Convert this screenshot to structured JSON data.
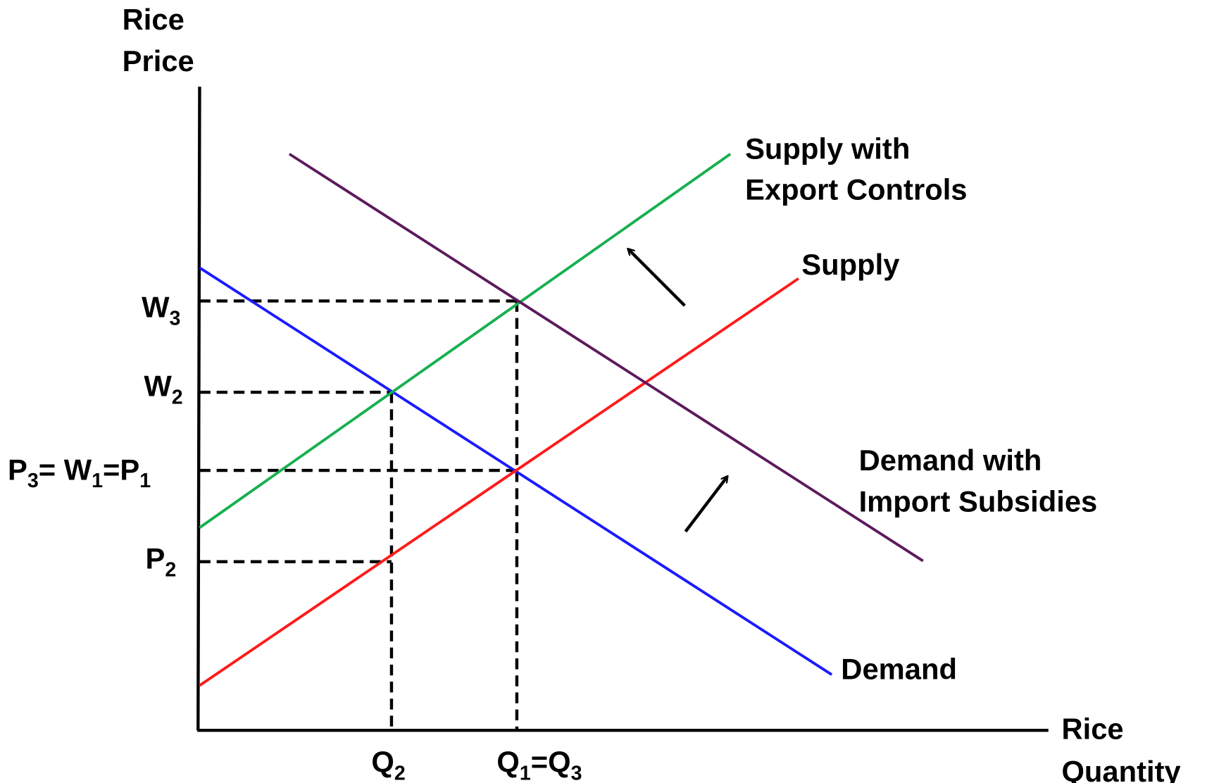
{
  "y_axis_label": [
    "Rice",
    "Price"
  ],
  "x_axis_label": [
    "Rice",
    "Quantity"
  ],
  "curves": [
    {
      "lines": [
        "Supply with",
        "Export Controls"
      ]
    },
    {
      "lines": [
        "Supply"
      ]
    },
    {
      "lines": [
        "Demand with",
        "Import Subsidies"
      ]
    },
    {
      "lines": [
        "Demand"
      ]
    }
  ],
  "price_labels": [
    {
      "parts": [
        {
          "text": "W"
        },
        {
          "text": "3",
          "sub": true
        }
      ]
    },
    {
      "parts": [
        {
          "text": "W"
        },
        {
          "text": "2",
          "sub": true
        }
      ]
    },
    {
      "parts": [
        {
          "text": "P"
        },
        {
          "text": "3",
          "sub": true
        },
        {
          "text": "= W"
        },
        {
          "text": "1",
          "sub": true
        },
        {
          "text": "=P"
        },
        {
          "text": "1",
          "sub": true
        }
      ]
    },
    {
      "parts": [
        {
          "text": "P"
        },
        {
          "text": "2",
          "sub": true
        }
      ]
    }
  ],
  "quantity_labels": [
    {
      "parts": [
        {
          "text": "Q"
        },
        {
          "text": "2",
          "sub": true
        }
      ]
    },
    {
      "parts": [
        {
          "text": "Q"
        },
        {
          "text": "1",
          "sub": true
        },
        {
          "text": "=Q"
        },
        {
          "text": "3",
          "sub": true
        }
      ]
    }
  ]
}
